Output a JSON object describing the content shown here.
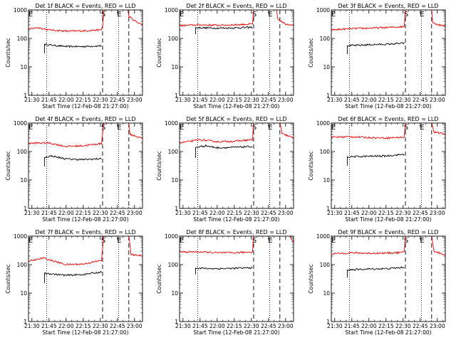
{
  "figure": {
    "x_tick_labels": [
      "21:30",
      "21:45",
      "22:00",
      "22:15",
      "22:30",
      "22:45",
      "23:00"
    ],
    "y_tick_labels": [
      "1",
      "10",
      "100",
      "1000"
    ],
    "ylabel": "Counts/sec",
    "xlabel": "Start Time (12-Feb-08 21:27:00)",
    "marker_s": "S",
    "marker_e": "E"
  },
  "chart_data": [
    {
      "type": "line",
      "title": "Det 1f BLACK = Events, RED = LLD",
      "xlabel": "Start Time (12-Feb-08 21:27:00)",
      "ylabel": "Counts/sec",
      "xlim": [
        "21:27",
        "23:07"
      ],
      "ylim": [
        1,
        1000
      ],
      "yscale": "log",
      "series_colors": {
        "Events": "#000000",
        "LLD": "#ff0000"
      },
      "series": [
        {
          "name": "Events",
          "points": [
            [
              "21:41",
              30
            ],
            [
              "21:41",
              62
            ],
            [
              "21:47",
              58
            ],
            [
              "22:00",
              52
            ],
            [
              "22:15",
              52
            ],
            [
              "22:31",
              55
            ]
          ]
        },
        {
          "name": "LLD",
          "points": [
            [
              "21:27",
              210
            ],
            [
              "21:35",
              240
            ],
            [
              "21:45",
              200
            ],
            [
              "22:00",
              180
            ],
            [
              "22:15",
              185
            ],
            [
              "22:31",
              200
            ],
            [
              "22:32",
              280
            ],
            [
              "22:33",
              800
            ],
            [
              "22:34",
              1100
            ],
            [
              "22:47",
              1100
            ],
            [
              "22:54",
              1100
            ],
            [
              "22:55",
              600
            ],
            [
              "23:00",
              420
            ],
            [
              "23:07",
              300
            ]
          ]
        }
      ],
      "vlines_dotted": [
        "21:43",
        "22:46"
      ],
      "vlines_dashed": [
        "22:32",
        "22:55"
      ]
    },
    {
      "type": "line",
      "title": "Det 2f BLACK = Events, RED = LLD",
      "xlabel": "Start Time (12-Feb-08 21:27:00)",
      "ylabel": "Counts/sec",
      "xlim": [
        "21:27",
        "23:07"
      ],
      "ylim": [
        1,
        1000
      ],
      "yscale": "log",
      "series_colors": {
        "Events": "#000000",
        "LLD": "#ff0000"
      },
      "series": [
        {
          "name": "Events",
          "points": [
            [
              "21:41",
              140
            ],
            [
              "21:41",
              240
            ],
            [
              "22:00",
              230
            ],
            [
              "22:15",
              235
            ],
            [
              "22:31",
              245
            ]
          ]
        },
        {
          "name": "LLD",
          "points": [
            [
              "21:27",
              280
            ],
            [
              "21:45",
              300
            ],
            [
              "22:00",
              290
            ],
            [
              "22:15",
              300
            ],
            [
              "22:31",
              320
            ],
            [
              "22:32",
              1100
            ],
            [
              "22:47",
              1100
            ],
            [
              "22:52",
              1100
            ],
            [
              "22:53",
              500
            ],
            [
              "23:00",
              320
            ],
            [
              "23:07",
              300
            ]
          ]
        }
      ],
      "vlines_dotted": [
        "21:43",
        "22:46"
      ],
      "vlines_dashed": [
        "22:32",
        "22:55"
      ]
    },
    {
      "type": "line",
      "title": "Det 3f BLACK = Events, RED = LLD",
      "xlabel": "Start Time (12-Feb-08 21:27:00)",
      "ylabel": "Counts/sec",
      "xlim": [
        "21:27",
        "23:07"
      ],
      "ylim": [
        1,
        1000
      ],
      "yscale": "log",
      "series_colors": {
        "Events": "#000000",
        "LLD": "#ff0000"
      },
      "series": [
        {
          "name": "Events",
          "points": [
            [
              "21:41",
              28
            ],
            [
              "21:41",
              55
            ],
            [
              "22:00",
              60
            ],
            [
              "22:15",
              62
            ],
            [
              "22:31",
              68
            ]
          ]
        },
        {
          "name": "LLD",
          "points": [
            [
              "21:27",
              200
            ],
            [
              "21:45",
              220
            ],
            [
              "22:00",
              230
            ],
            [
              "22:15",
              240
            ],
            [
              "22:31",
              260
            ],
            [
              "22:32",
              1100
            ],
            [
              "22:47",
              1100
            ],
            [
              "22:55",
              1100
            ],
            [
              "22:56",
              350
            ],
            [
              "23:07",
              260
            ]
          ]
        }
      ],
      "vlines_dotted": [
        "21:43",
        "22:46"
      ],
      "vlines_dashed": [
        "22:32",
        "22:55"
      ]
    },
    {
      "type": "line",
      "title": "Det 4f BLACK = Events, RED = LLD",
      "xlabel": "Start Time (12-Feb-08 21:27:00)",
      "ylabel": "Counts/sec",
      "xlim": [
        "21:27",
        "23:07"
      ],
      "ylim": [
        1,
        1000
      ],
      "yscale": "log",
      "series_colors": {
        "Events": "#000000",
        "LLD": "#ff0000"
      },
      "series": [
        {
          "name": "Events",
          "points": [
            [
              "21:41",
              30
            ],
            [
              "21:41",
              62
            ],
            [
              "21:47",
              70
            ],
            [
              "22:00",
              55
            ],
            [
              "22:15",
              52
            ],
            [
              "22:31",
              56
            ]
          ]
        },
        {
          "name": "LLD",
          "points": [
            [
              "21:27",
              190
            ],
            [
              "21:35",
              200
            ],
            [
              "21:45",
              200
            ],
            [
              "22:00",
              150
            ],
            [
              "22:15",
              160
            ],
            [
              "22:31",
              190
            ],
            [
              "22:33",
              1000
            ],
            [
              "22:47",
              1100
            ],
            [
              "22:55",
              1100
            ],
            [
              "22:56",
              400
            ],
            [
              "23:07",
              290
            ]
          ]
        }
      ],
      "vlines_dotted": [
        "21:43",
        "22:46"
      ],
      "vlines_dashed": [
        "22:32",
        "22:55"
      ]
    },
    {
      "type": "line",
      "title": "Det 5f BLACK = Events, RED = LLD",
      "xlabel": "Start Time (12-Feb-08 21:27:00)",
      "ylabel": "Counts/sec",
      "xlim": [
        "21:27",
        "23:07"
      ],
      "ylim": [
        1,
        1000
      ],
      "yscale": "log",
      "series_colors": {
        "Events": "#000000",
        "LLD": "#ff0000"
      },
      "series": [
        {
          "name": "Events",
          "points": [
            [
              "21:41",
              60
            ],
            [
              "21:41",
              140
            ],
            [
              "21:50",
              160
            ],
            [
              "22:00",
              135
            ],
            [
              "22:15",
              140
            ],
            [
              "22:31",
              150
            ]
          ]
        },
        {
          "name": "LLD",
          "points": [
            [
              "21:27",
              200
            ],
            [
              "21:45",
              260
            ],
            [
              "22:00",
              220
            ],
            [
              "22:15",
              230
            ],
            [
              "22:31",
              260
            ],
            [
              "22:32",
              1100
            ],
            [
              "22:47",
              1100
            ],
            [
              "22:55",
              1100
            ],
            [
              "22:57",
              420
            ],
            [
              "23:07",
              300
            ]
          ]
        }
      ],
      "vlines_dotted": [
        "21:43",
        "22:46"
      ],
      "vlines_dashed": [
        "22:32",
        "22:55"
      ]
    },
    {
      "type": "line",
      "title": "Det 6f BLACK = Events, RED = LLD",
      "xlabel": "Start Time (12-Feb-08 21:27:00)",
      "ylabel": "Counts/sec",
      "xlim": [
        "21:27",
        "23:07"
      ],
      "ylim": [
        1,
        1000
      ],
      "yscale": "log",
      "series_colors": {
        "Events": "#000000",
        "LLD": "#ff0000"
      },
      "series": [
        {
          "name": "Events",
          "points": [
            [
              "21:41",
              32
            ],
            [
              "21:41",
              65
            ],
            [
              "22:00",
              68
            ],
            [
              "22:15",
              70
            ],
            [
              "22:31",
              80
            ]
          ]
        },
        {
          "name": "LLD",
          "points": [
            [
              "21:27",
              320
            ],
            [
              "21:45",
              330
            ],
            [
              "22:00",
              310
            ],
            [
              "22:15",
              300
            ],
            [
              "22:31",
              320
            ],
            [
              "22:32",
              1100
            ],
            [
              "22:47",
              1100
            ],
            [
              "22:55",
              1100
            ],
            [
              "22:57",
              480
            ],
            [
              "23:07",
              410
            ]
          ]
        }
      ],
      "vlines_dotted": [
        "21:43",
        "22:46"
      ],
      "vlines_dashed": [
        "22:32",
        "22:55"
      ]
    },
    {
      "type": "line",
      "title": "Det 7f BLACK = Events, RED = LLD",
      "xlabel": "Start Time (12-Feb-08 21:27:00)",
      "ylabel": "Counts/sec",
      "xlim": [
        "21:27",
        "23:07"
      ],
      "ylim": [
        1,
        1000
      ],
      "yscale": "log",
      "series_colors": {
        "Events": "#000000",
        "LLD": "#ff0000"
      },
      "series": [
        {
          "name": "Events",
          "points": [
            [
              "21:41",
              22
            ],
            [
              "21:41",
              50
            ],
            [
              "22:00",
              42
            ],
            [
              "22:15",
              45
            ],
            [
              "22:31",
              55
            ]
          ]
        },
        {
          "name": "LLD",
          "points": [
            [
              "21:27",
              130
            ],
            [
              "21:40",
              170
            ],
            [
              "21:50",
              130
            ],
            [
              "22:00",
              100
            ],
            [
              "22:15",
              105
            ],
            [
              "22:31",
              140
            ],
            [
              "22:33",
              1000
            ],
            [
              "22:47",
              1100
            ],
            [
              "22:55",
              1100
            ],
            [
              "22:57",
              220
            ],
            [
              "23:07",
              210
            ]
          ]
        }
      ],
      "vlines_dotted": [
        "21:43",
        "22:46"
      ],
      "vlines_dashed": [
        "22:32",
        "22:55"
      ]
    },
    {
      "type": "line",
      "title": "Det 8f BLACK = Events, RED = LLD",
      "xlabel": "Start Time (12-Feb-08 21:27:00)",
      "ylabel": "Counts/sec",
      "xlim": [
        "21:27",
        "23:07"
      ],
      "ylim": [
        1,
        1000
      ],
      "yscale": "log",
      "series_colors": {
        "Events": "#000000",
        "LLD": "#ff0000"
      },
      "series": [
        {
          "name": "Events",
          "points": [
            [
              "21:41",
              45
            ],
            [
              "21:41",
              75
            ],
            [
              "22:00",
              72
            ],
            [
              "22:15",
              74
            ],
            [
              "22:31",
              78
            ]
          ]
        },
        {
          "name": "LLD",
          "points": [
            [
              "21:27",
              280
            ],
            [
              "21:45",
              280
            ],
            [
              "22:00",
              260
            ],
            [
              "22:15",
              260
            ],
            [
              "22:31",
              280
            ],
            [
              "22:32",
              1100
            ],
            [
              "22:47",
              1100
            ],
            [
              "23:03",
              1100
            ],
            [
              "23:07",
              600
            ]
          ]
        }
      ],
      "vlines_dotted": [
        "21:43",
        "22:46"
      ],
      "vlines_dashed": [
        "22:32",
        "22:55"
      ]
    },
    {
      "type": "line",
      "title": "Det 9f BLACK = Events, RED = LLD",
      "xlabel": "Start Time (12-Feb-08 21:27:00)",
      "ylabel": "Counts/sec",
      "xlim": [
        "21:27",
        "23:07"
      ],
      "ylim": [
        1,
        1000
      ],
      "yscale": "log",
      "series_colors": {
        "Events": "#000000",
        "LLD": "#ff0000"
      },
      "series": [
        {
          "name": "Events",
          "points": [
            [
              "21:41",
              35
            ],
            [
              "21:41",
              65
            ],
            [
              "22:00",
              70
            ],
            [
              "22:15",
              72
            ],
            [
              "22:31",
              80
            ]
          ]
        },
        {
          "name": "LLD",
          "points": [
            [
              "21:27",
              240
            ],
            [
              "21:45",
              260
            ],
            [
              "22:00",
              250
            ],
            [
              "22:15",
              255
            ],
            [
              "22:31",
              270
            ],
            [
              "22:32",
              1100
            ],
            [
              "22:47",
              1100
            ],
            [
              "22:55",
              1100
            ],
            [
              "22:57",
              300
            ],
            [
              "23:07",
              220
            ]
          ]
        }
      ],
      "vlines_dotted": [
        "21:43",
        "22:46"
      ],
      "vlines_dashed": [
        "22:32",
        "22:55"
      ]
    }
  ]
}
